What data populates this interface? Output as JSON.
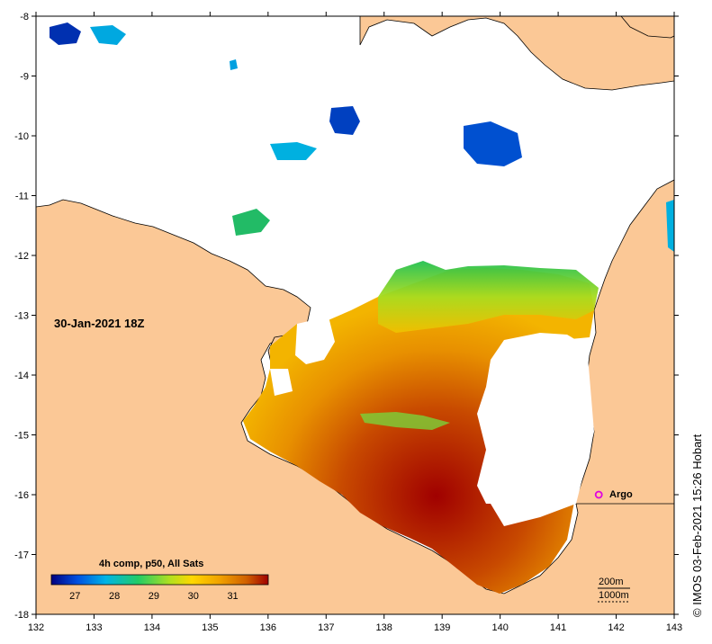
{
  "map": {
    "date_label": "30-Jan-2021 18Z",
    "credit": "© IMOS 03-Feb-2021 15:26 Hobart",
    "x_ticks": [
      "132",
      "133",
      "134",
      "135",
      "136",
      "137",
      "138",
      "139",
      "140",
      "141",
      "142",
      "143"
    ],
    "y_ticks": [
      "-8",
      "-9",
      "-10",
      "-11",
      "-12",
      "-13",
      "-14",
      "-15",
      "-16",
      "-17",
      "-18"
    ],
    "lon_range": [
      132,
      143
    ],
    "lat_range": [
      -18,
      -8
    ],
    "land_color": "#fbc896",
    "no_data_color": "#ffffff",
    "argo": {
      "label": "Argo",
      "lon": 141.7,
      "lat": -16.0,
      "color": "#e000e0"
    },
    "scale": {
      "label_1": "200m",
      "label_2": "1000m"
    },
    "legend": {
      "title": "4h comp, p50, All Sats",
      "ticks": [
        "27",
        "28",
        "29",
        "30",
        "31"
      ],
      "range": [
        26.4,
        31.9
      ],
      "colors": [
        "#000080",
        "#0050e0",
        "#00b4e6",
        "#22cc66",
        "#b4e01e",
        "#ffd700",
        "#f0a000",
        "#d06000",
        "#a00000"
      ]
    }
  }
}
